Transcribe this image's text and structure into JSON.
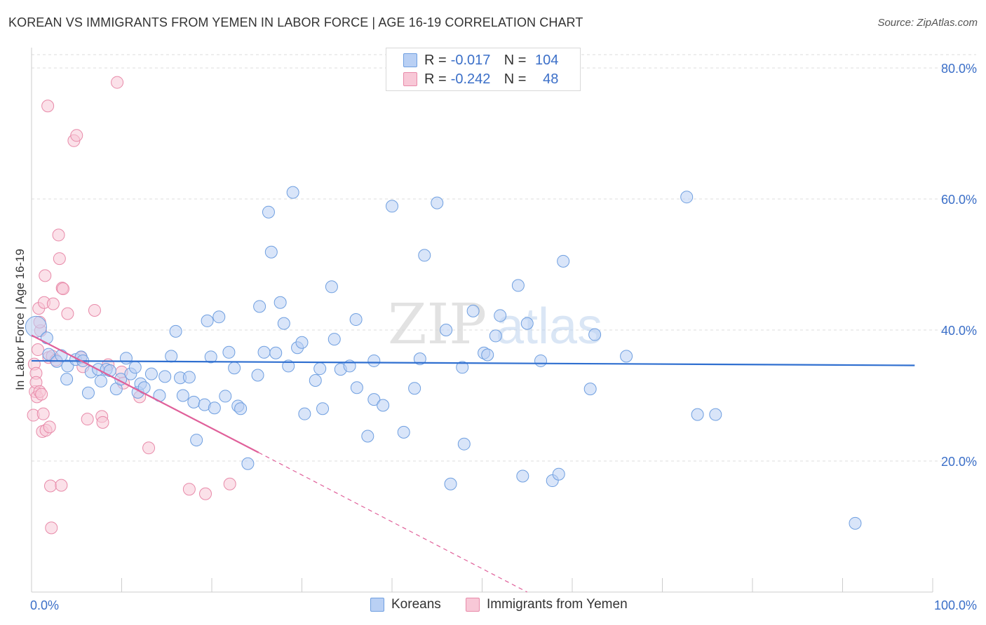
{
  "title": "KOREAN VS IMMIGRANTS FROM YEMEN IN LABOR FORCE | AGE 16-19 CORRELATION CHART",
  "source": "Source: ZipAtlas.com",
  "watermark": {
    "zip": "ZIP",
    "atlas": "atlas"
  },
  "legend": {
    "r_label": "R =",
    "n_label": "N =",
    "rows": [
      {
        "r": "-0.017",
        "n": "104"
      },
      {
        "r": "-0.242",
        "n": "48"
      }
    ]
  },
  "colors": {
    "koreans_fill": "#b9d0f4",
    "koreans_stroke": "#6f9fe0",
    "koreans_line": "#2f6fd0",
    "yemen_fill": "#f8c8d7",
    "yemen_stroke": "#e88aa9",
    "yemen_line": "#e0609a",
    "axis_text": "#3b6fc8",
    "grid": "#dddddd"
  },
  "chart_data": {
    "type": "scatter",
    "title": "KOREAN VS IMMIGRANTS FROM YEMEN IN LABOR FORCE | AGE 16-19 CORRELATION CHART",
    "xlabel": "",
    "ylabel": "In Labor Force | Age 16-19",
    "xlim": [
      0,
      100
    ],
    "ylim": [
      0,
      80
    ],
    "x_tick_labels": [
      "0.0%",
      "100.0%"
    ],
    "y_ticks": [
      20,
      40,
      60,
      80
    ],
    "y_tick_labels": [
      "20.0%",
      "40.0%",
      "60.0%",
      "80.0%"
    ],
    "grid": true,
    "series": [
      {
        "name": "Koreans",
        "r": -0.017,
        "n": 104,
        "trend": {
          "x": [
            0,
            98
          ],
          "y": [
            35.3,
            34.6
          ],
          "style": "solid"
        },
        "points": [
          [
            0.5,
            40.5
          ],
          [
            1.7,
            38.8
          ],
          [
            1.9,
            36.3
          ],
          [
            2.8,
            35.2
          ],
          [
            3.3,
            36.1
          ],
          [
            4.0,
            34.5
          ],
          [
            3.9,
            32.5
          ],
          [
            4.9,
            35.5
          ],
          [
            5.5,
            35.9
          ],
          [
            5.7,
            35.3
          ],
          [
            6.3,
            30.4
          ],
          [
            6.6,
            33.6
          ],
          [
            7.4,
            34.0
          ],
          [
            7.7,
            32.2
          ],
          [
            8.3,
            34.0
          ],
          [
            8.7,
            33.8
          ],
          [
            9.4,
            31.0
          ],
          [
            9.9,
            32.5
          ],
          [
            10.5,
            35.7
          ],
          [
            11.0,
            33.3
          ],
          [
            11.5,
            34.3
          ],
          [
            11.8,
            30.5
          ],
          [
            12.1,
            31.8
          ],
          [
            12.5,
            31.2
          ],
          [
            13.3,
            33.3
          ],
          [
            14.2,
            30.0
          ],
          [
            14.8,
            32.9
          ],
          [
            15.5,
            36.0
          ],
          [
            16.0,
            39.8
          ],
          [
            16.5,
            32.7
          ],
          [
            16.8,
            30.0
          ],
          [
            17.5,
            32.8
          ],
          [
            18.0,
            29.0
          ],
          [
            18.3,
            23.2
          ],
          [
            19.2,
            28.6
          ],
          [
            19.5,
            41.4
          ],
          [
            19.9,
            35.9
          ],
          [
            20.3,
            28.1
          ],
          [
            20.8,
            42.0
          ],
          [
            21.5,
            29.9
          ],
          [
            21.9,
            36.6
          ],
          [
            22.5,
            34.2
          ],
          [
            22.9,
            28.4
          ],
          [
            23.2,
            28.0
          ],
          [
            24.0,
            19.6
          ],
          [
            25.1,
            33.1
          ],
          [
            25.3,
            43.6
          ],
          [
            25.8,
            36.6
          ],
          [
            26.3,
            58.0
          ],
          [
            26.6,
            51.9
          ],
          [
            27.1,
            36.5
          ],
          [
            27.6,
            44.2
          ],
          [
            28.0,
            41.0
          ],
          [
            28.5,
            34.5
          ],
          [
            29.0,
            61.0
          ],
          [
            29.5,
            37.3
          ],
          [
            30.0,
            38.1
          ],
          [
            30.3,
            27.2
          ],
          [
            31.5,
            32.3
          ],
          [
            32.0,
            34.1
          ],
          [
            32.3,
            28.0
          ],
          [
            33.3,
            46.6
          ],
          [
            33.6,
            38.6
          ],
          [
            34.3,
            34.0
          ],
          [
            35.3,
            34.5
          ],
          [
            36.0,
            41.6
          ],
          [
            36.1,
            31.2
          ],
          [
            37.3,
            23.8
          ],
          [
            38.0,
            35.3
          ],
          [
            38.0,
            29.4
          ],
          [
            39.0,
            28.5
          ],
          [
            40.0,
            58.9
          ],
          [
            41.3,
            24.4
          ],
          [
            42.5,
            31.1
          ],
          [
            43.1,
            35.6
          ],
          [
            43.6,
            51.4
          ],
          [
            45.0,
            59.4
          ],
          [
            46.0,
            40.0
          ],
          [
            46.5,
            16.5
          ],
          [
            47.8,
            34.3
          ],
          [
            48.0,
            22.6
          ],
          [
            49.0,
            42.9
          ],
          [
            50.2,
            36.5
          ],
          [
            50.6,
            36.2
          ],
          [
            51.5,
            39.1
          ],
          [
            52.0,
            42.2
          ],
          [
            54.0,
            46.8
          ],
          [
            54.5,
            17.7
          ],
          [
            55.0,
            41.0
          ],
          [
            56.5,
            35.3
          ],
          [
            57.8,
            17.0
          ],
          [
            58.5,
            18.0
          ],
          [
            59.0,
            50.5
          ],
          [
            62.0,
            31.0
          ],
          [
            62.5,
            39.3
          ],
          [
            66.0,
            36.0
          ],
          [
            72.7,
            60.3
          ],
          [
            73.9,
            27.1
          ],
          [
            75.9,
            27.1
          ],
          [
            91.4,
            10.5
          ]
        ]
      },
      {
        "name": "Immigrants from Yemen",
        "r": -0.242,
        "n": 48,
        "trend": {
          "x": [
            0,
            25.2
          ],
          "y": [
            39.2,
            21.3
          ],
          "style": "solid",
          "extended_x": [
            25.2,
            55
          ],
          "extended_y": [
            21.3,
            0
          ],
          "extended_style": "dashed"
        },
        "points": [
          [
            0.2,
            27.0
          ],
          [
            0.3,
            34.8
          ],
          [
            0.4,
            30.6
          ],
          [
            0.5,
            33.4
          ],
          [
            0.5,
            32.0
          ],
          [
            0.6,
            29.8
          ],
          [
            0.7,
            37.0
          ],
          [
            0.8,
            43.3
          ],
          [
            0.9,
            30.6
          ],
          [
            1.0,
            39.9
          ],
          [
            1.1,
            30.2
          ],
          [
            1.2,
            24.5
          ],
          [
            1.3,
            27.2
          ],
          [
            1.4,
            44.2
          ],
          [
            1.5,
            48.3
          ],
          [
            1.6,
            24.7
          ],
          [
            1.8,
            74.2
          ],
          [
            1.9,
            35.8
          ],
          [
            2.0,
            25.2
          ],
          [
            2.1,
            16.2
          ],
          [
            2.2,
            9.8
          ],
          [
            2.3,
            36.0
          ],
          [
            2.4,
            44.0
          ],
          [
            2.7,
            35.4
          ],
          [
            3.0,
            54.5
          ],
          [
            3.1,
            50.9
          ],
          [
            3.3,
            16.3
          ],
          [
            3.4,
            46.4
          ],
          [
            3.5,
            46.3
          ],
          [
            4.0,
            42.5
          ],
          [
            4.7,
            68.9
          ],
          [
            5.0,
            69.7
          ],
          [
            5.5,
            35.8
          ],
          [
            5.7,
            34.4
          ],
          [
            6.2,
            26.4
          ],
          [
            7.0,
            43.0
          ],
          [
            7.8,
            26.8
          ],
          [
            7.9,
            25.9
          ],
          [
            8.5,
            34.7
          ],
          [
            9.5,
            77.8
          ],
          [
            10.0,
            33.6
          ],
          [
            10.2,
            31.9
          ],
          [
            12.0,
            29.8
          ],
          [
            13.0,
            22.0
          ],
          [
            17.5,
            15.7
          ],
          [
            19.3,
            15.0
          ],
          [
            22.0,
            16.5
          ],
          [
            0.9,
            41.2
          ]
        ]
      }
    ]
  },
  "bottom_legend": [
    "Koreans",
    "Immigrants from Yemen"
  ]
}
